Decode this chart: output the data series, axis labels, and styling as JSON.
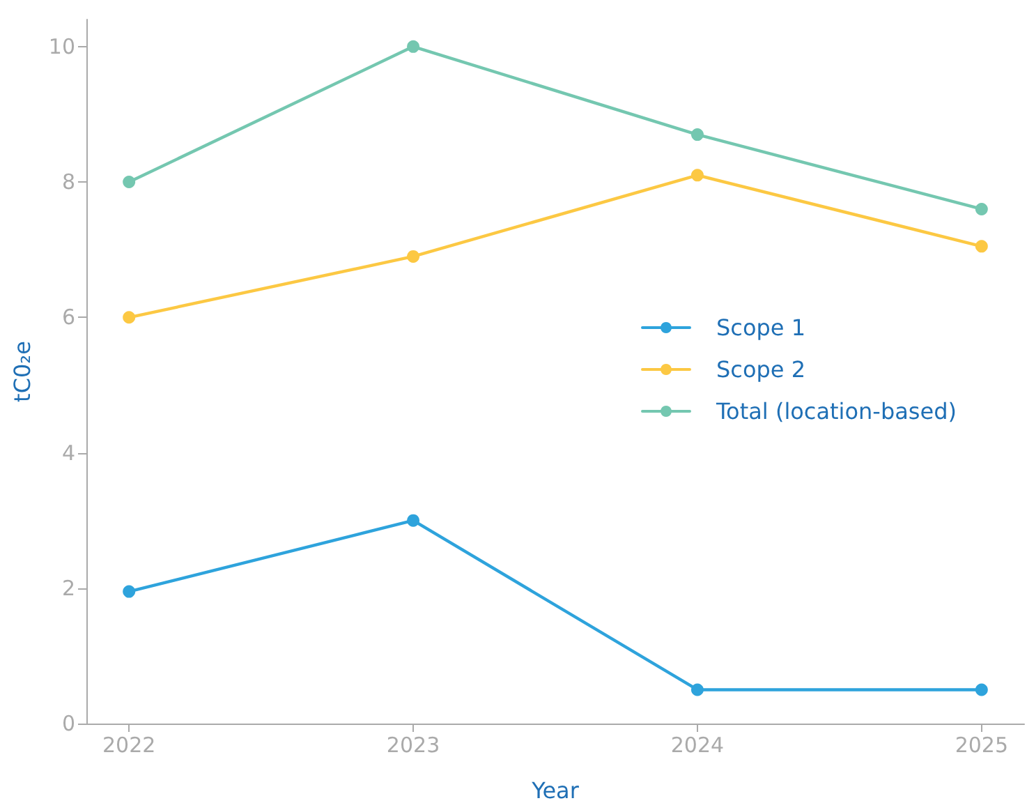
{
  "chart_data": {
    "type": "line",
    "xlabel": "Year",
    "ylabel": "tC0₂e",
    "x": [
      2022,
      2023,
      2024,
      2025
    ],
    "series": [
      {
        "name": "Scope 1",
        "color": "#2ea3dc",
        "values": [
          1.95,
          3.0,
          0.5,
          0.5
        ]
      },
      {
        "name": "Scope 2",
        "color": "#fcc843",
        "values": [
          6.0,
          6.9,
          8.1,
          7.05
        ]
      },
      {
        "name": "Total (location-based)",
        "color": "#74c7b0",
        "values": [
          8.0,
          10.0,
          8.7,
          7.6
        ]
      }
    ],
    "xlim": [
      2021.85,
      2025.15
    ],
    "xticks": [
      2022,
      2023,
      2024,
      2025
    ],
    "ylim": [
      0,
      10.4
    ],
    "yticks": [
      0,
      2,
      4,
      6,
      8,
      10
    ],
    "grid": false,
    "legend": "right",
    "marker": "circle",
    "line_style": "solid"
  }
}
